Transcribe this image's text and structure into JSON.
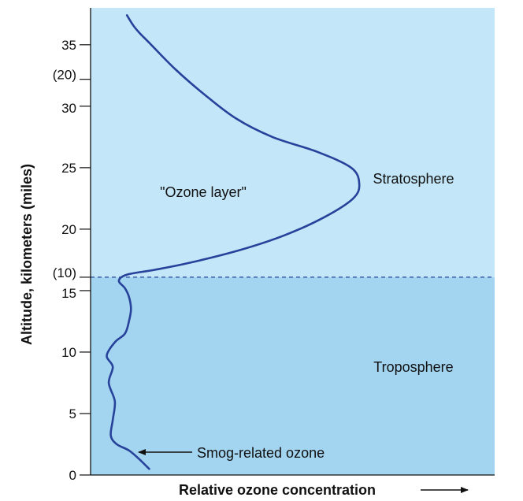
{
  "chart_data": {
    "type": "line",
    "xlabel": "Relative ozone concentration",
    "ylabel": "Altitude, kilometers (miles)",
    "ylim": [
      0,
      38
    ],
    "xlim": [
      0,
      10
    ],
    "grid": false,
    "km_ticks": [
      {
        "value": 0,
        "label": "0"
      },
      {
        "value": 5,
        "label": "5"
      },
      {
        "value": 10,
        "label": "10"
      },
      {
        "value": 15,
        "label": "15"
      },
      {
        "value": 20,
        "label": "20"
      },
      {
        "value": 25,
        "label": "25"
      },
      {
        "value": 30,
        "label": "30"
      },
      {
        "value": 35,
        "label": "35"
      }
    ],
    "mile_ticks": [
      {
        "value_km": 16.09,
        "label": "(10)"
      },
      {
        "value_km": 32.19,
        "label": "(20)"
      }
    ],
    "boundary_km": 16.09,
    "regions": [
      {
        "label": "Stratosphere",
        "color": "#c3e6f8"
      },
      {
        "label": "Troposphere",
        "color": "#a3d4f0"
      }
    ],
    "annotations": [
      {
        "label": "\"Ozone layer\""
      },
      {
        "label": "Smog-related ozone"
      }
    ],
    "line_color": "#26429a",
    "series": [
      {
        "points": [
          [
            1.45,
            0.5
          ],
          [
            1.2,
            1.3
          ],
          [
            0.95,
            2.0
          ],
          [
            0.65,
            2.5
          ],
          [
            0.5,
            3.2
          ],
          [
            0.55,
            4.5
          ],
          [
            0.6,
            6.0
          ],
          [
            0.45,
            7.5
          ],
          [
            0.55,
            8.8
          ],
          [
            0.4,
            9.7
          ],
          [
            0.6,
            10.8
          ],
          [
            0.85,
            11.5
          ],
          [
            0.95,
            12.5
          ],
          [
            1.0,
            13.5
          ],
          [
            0.95,
            14.5
          ],
          [
            0.85,
            15.2
          ],
          [
            0.7,
            15.8
          ],
          [
            0.9,
            16.3
          ],
          [
            1.6,
            16.7
          ],
          [
            2.5,
            17.3
          ],
          [
            3.7,
            18.3
          ],
          [
            4.8,
            19.5
          ],
          [
            5.8,
            21.0
          ],
          [
            6.5,
            22.5
          ],
          [
            6.65,
            23.7
          ],
          [
            6.45,
            25.0
          ],
          [
            5.6,
            26.3
          ],
          [
            4.5,
            27.5
          ],
          [
            3.6,
            29.0
          ],
          [
            2.8,
            31.0
          ],
          [
            2.1,
            33.0
          ],
          [
            1.5,
            35.0
          ],
          [
            1.2,
            36.0
          ],
          [
            1.05,
            36.6
          ],
          [
            0.9,
            37.4
          ]
        ]
      }
    ]
  }
}
